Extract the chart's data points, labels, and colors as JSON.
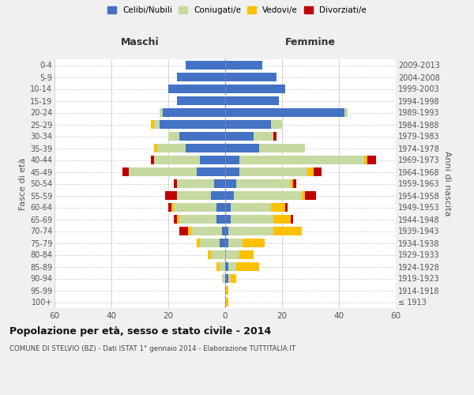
{
  "age_groups": [
    "100+",
    "95-99",
    "90-94",
    "85-89",
    "80-84",
    "75-79",
    "70-74",
    "65-69",
    "60-64",
    "55-59",
    "50-54",
    "45-49",
    "40-44",
    "35-39",
    "30-34",
    "25-29",
    "20-24",
    "15-19",
    "10-14",
    "5-9",
    "0-4"
  ],
  "birth_years": [
    "≤ 1913",
    "1914-1918",
    "1919-1923",
    "1924-1928",
    "1929-1933",
    "1934-1938",
    "1939-1943",
    "1944-1948",
    "1949-1953",
    "1954-1958",
    "1959-1963",
    "1964-1968",
    "1969-1973",
    "1974-1978",
    "1979-1983",
    "1984-1988",
    "1989-1993",
    "1994-1998",
    "1999-2003",
    "2004-2008",
    "2009-2013"
  ],
  "male": {
    "celibi": [
      0,
      0,
      0,
      0,
      0,
      2,
      1,
      3,
      3,
      5,
      4,
      10,
      9,
      14,
      16,
      23,
      22,
      17,
      20,
      17,
      14
    ],
    "coniugati": [
      0,
      0,
      1,
      2,
      5,
      7,
      11,
      13,
      15,
      12,
      13,
      24,
      16,
      10,
      4,
      2,
      1,
      0,
      0,
      0,
      0
    ],
    "vedovi": [
      0,
      0,
      0,
      1,
      1,
      1,
      1,
      1,
      1,
      0,
      0,
      0,
      0,
      1,
      0,
      1,
      0,
      0,
      0,
      0,
      0
    ],
    "divorziati": [
      0,
      0,
      0,
      0,
      0,
      0,
      3,
      1,
      1,
      4,
      1,
      2,
      1,
      0,
      0,
      0,
      0,
      0,
      0,
      0,
      0
    ]
  },
  "female": {
    "celibi": [
      0,
      0,
      1,
      1,
      0,
      1,
      1,
      2,
      2,
      3,
      4,
      5,
      5,
      12,
      10,
      16,
      42,
      19,
      21,
      18,
      13
    ],
    "coniugati": [
      0,
      0,
      1,
      3,
      5,
      5,
      16,
      15,
      14,
      24,
      19,
      24,
      44,
      16,
      7,
      4,
      1,
      0,
      0,
      0,
      0
    ],
    "vedovi": [
      1,
      1,
      2,
      8,
      5,
      8,
      10,
      6,
      5,
      1,
      1,
      2,
      1,
      0,
      0,
      0,
      0,
      0,
      0,
      0,
      0
    ],
    "divorziati": [
      0,
      0,
      0,
      0,
      0,
      0,
      0,
      1,
      1,
      4,
      1,
      3,
      3,
      0,
      1,
      0,
      0,
      0,
      0,
      0,
      0
    ]
  },
  "colors": {
    "celibi": "#4472c4",
    "coniugati": "#c5d9a0",
    "vedovi": "#ffc000",
    "divorziati": "#c00000"
  },
  "legend_labels": [
    "Celibi/Nubili",
    "Coniugati/e",
    "Vedovi/e",
    "Divorziati/e"
  ],
  "xlim": 60,
  "title": "Popolazione per età, sesso e stato civile - 2014",
  "subtitle": "COMUNE DI STELVIO (BZ) - Dati ISTAT 1° gennaio 2014 - Elaborazione TUTTITALIA.IT",
  "ylabel_left": "Fasce di età",
  "ylabel_right": "Anni di nascita",
  "maschi_label": "Maschi",
  "femmine_label": "Femmine",
  "bg_color": "#f0f0f0",
  "plot_bg_color": "#ffffff"
}
